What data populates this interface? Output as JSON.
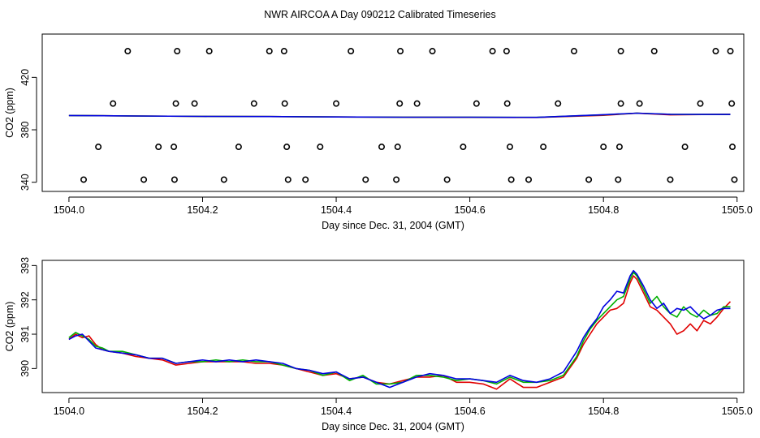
{
  "title": "NWR AIRCOA A  Day 090212  Calibrated Timeseries",
  "colors": {
    "red": "#e00000",
    "green": "#00b000",
    "blue": "#0000e0",
    "axis": "#000000"
  },
  "chart_data": [
    {
      "type": "scatter",
      "xlabel": "Day since Dec. 31, 2004 (GMT)",
      "ylabel": "CO2 (ppm)",
      "xlim": [
        1503.96,
        1505.01
      ],
      "ylim": [
        333,
        453
      ],
      "xticks": [
        "1504.0",
        "1504.2",
        "1504.4",
        "1504.6",
        "1504.8",
        "1505.0"
      ],
      "yticks": [
        "340",
        "380",
        "420"
      ],
      "grid": false,
      "markers": [
        {
          "x": 1504.088,
          "y": 440
        },
        {
          "x": 1504.162,
          "y": 440
        },
        {
          "x": 1504.21,
          "y": 440
        },
        {
          "x": 1504.3,
          "y": 440
        },
        {
          "x": 1504.322,
          "y": 440
        },
        {
          "x": 1504.422,
          "y": 440
        },
        {
          "x": 1504.496,
          "y": 440
        },
        {
          "x": 1504.544,
          "y": 440
        },
        {
          "x": 1504.634,
          "y": 440
        },
        {
          "x": 1504.655,
          "y": 440
        },
        {
          "x": 1504.756,
          "y": 440
        },
        {
          "x": 1504.826,
          "y": 440
        },
        {
          "x": 1504.876,
          "y": 440
        },
        {
          "x": 1504.968,
          "y": 440
        },
        {
          "x": 1504.99,
          "y": 440
        },
        {
          "x": 1504.066,
          "y": 400
        },
        {
          "x": 1504.16,
          "y": 400
        },
        {
          "x": 1504.188,
          "y": 400
        },
        {
          "x": 1504.277,
          "y": 400
        },
        {
          "x": 1504.323,
          "y": 400
        },
        {
          "x": 1504.4,
          "y": 400
        },
        {
          "x": 1504.495,
          "y": 400
        },
        {
          "x": 1504.521,
          "y": 400
        },
        {
          "x": 1504.61,
          "y": 400
        },
        {
          "x": 1504.656,
          "y": 400
        },
        {
          "x": 1504.732,
          "y": 400
        },
        {
          "x": 1504.826,
          "y": 400
        },
        {
          "x": 1504.854,
          "y": 400
        },
        {
          "x": 1504.945,
          "y": 400
        },
        {
          "x": 1504.992,
          "y": 400
        },
        {
          "x": 1504.044,
          "y": 367
        },
        {
          "x": 1504.134,
          "y": 367
        },
        {
          "x": 1504.157,
          "y": 367
        },
        {
          "x": 1504.254,
          "y": 367
        },
        {
          "x": 1504.326,
          "y": 367
        },
        {
          "x": 1504.376,
          "y": 367
        },
        {
          "x": 1504.468,
          "y": 367
        },
        {
          "x": 1504.492,
          "y": 367
        },
        {
          "x": 1504.59,
          "y": 367
        },
        {
          "x": 1504.66,
          "y": 367
        },
        {
          "x": 1504.71,
          "y": 367
        },
        {
          "x": 1504.8,
          "y": 367
        },
        {
          "x": 1504.824,
          "y": 367
        },
        {
          "x": 1504.922,
          "y": 367
        },
        {
          "x": 1504.993,
          "y": 367
        },
        {
          "x": 1504.022,
          "y": 342
        },
        {
          "x": 1504.112,
          "y": 342
        },
        {
          "x": 1504.158,
          "y": 342
        },
        {
          "x": 1504.232,
          "y": 342
        },
        {
          "x": 1504.328,
          "y": 342
        },
        {
          "x": 1504.354,
          "y": 342
        },
        {
          "x": 1504.444,
          "y": 342
        },
        {
          "x": 1504.49,
          "y": 342
        },
        {
          "x": 1504.566,
          "y": 342
        },
        {
          "x": 1504.662,
          "y": 342
        },
        {
          "x": 1504.688,
          "y": 342
        },
        {
          "x": 1504.778,
          "y": 342
        },
        {
          "x": 1504.822,
          "y": 342
        },
        {
          "x": 1504.9,
          "y": 342
        },
        {
          "x": 1504.996,
          "y": 342
        }
      ],
      "series": [
        {
          "color": "#e00000",
          "x": [
            1504.0,
            1504.1,
            1504.2,
            1504.3,
            1504.4,
            1504.5,
            1504.6,
            1504.7,
            1504.8,
            1504.85,
            1504.9,
            1504.99
          ],
          "y": [
            390.9,
            390.5,
            390.2,
            390.1,
            389.8,
            389.6,
            389.5,
            389.4,
            391.0,
            392.6,
            391.4,
            391.9
          ]
        },
        {
          "color": "#00b000",
          "x": [
            1504.0,
            1504.1,
            1504.2,
            1504.3,
            1504.4,
            1504.5,
            1504.6,
            1504.7,
            1504.8,
            1504.85,
            1504.9,
            1504.99
          ],
          "y": [
            390.9,
            390.5,
            390.2,
            390.1,
            389.8,
            389.6,
            389.6,
            389.5,
            391.4,
            392.7,
            391.8,
            391.7
          ]
        },
        {
          "color": "#0000e0",
          "x": [
            1504.0,
            1504.1,
            1504.2,
            1504.3,
            1504.4,
            1504.5,
            1504.6,
            1504.7,
            1504.8,
            1504.85,
            1504.9,
            1504.99
          ],
          "y": [
            390.9,
            390.5,
            390.2,
            390.1,
            389.8,
            389.6,
            389.6,
            389.5,
            391.5,
            392.7,
            391.8,
            391.7
          ]
        }
      ]
    },
    {
      "type": "line",
      "xlabel": "Day since Dec. 31, 2004 (GMT)",
      "ylabel": "CO2 (ppm)",
      "xlim": [
        1503.96,
        1505.01
      ],
      "ylim": [
        389.3,
        393.15
      ],
      "xticks": [
        "1504.0",
        "1504.2",
        "1504.4",
        "1504.6",
        "1504.8",
        "1505.0"
      ],
      "yticks": [
        "390",
        "391",
        "392",
        "393"
      ],
      "grid": false,
      "series": [
        {
          "color": "#e00000",
          "x": [
            1504.0,
            1504.01,
            1504.02,
            1504.03,
            1504.04,
            1504.05,
            1504.06,
            1504.08,
            1504.1,
            1504.12,
            1504.14,
            1504.16,
            1504.18,
            1504.2,
            1504.22,
            1504.24,
            1504.26,
            1504.28,
            1504.3,
            1504.32,
            1504.34,
            1504.36,
            1504.38,
            1504.4,
            1504.42,
            1504.44,
            1504.46,
            1504.48,
            1504.5,
            1504.52,
            1504.54,
            1504.56,
            1504.58,
            1504.6,
            1504.62,
            1504.64,
            1504.66,
            1504.68,
            1504.7,
            1504.72,
            1504.74,
            1504.76,
            1504.77,
            1504.78,
            1504.79,
            1504.8,
            1504.81,
            1504.82,
            1504.83,
            1504.84,
            1504.845,
            1504.85,
            1504.86,
            1504.87,
            1504.88,
            1504.89,
            1504.9,
            1504.91,
            1504.92,
            1504.93,
            1504.94,
            1504.95,
            1504.96,
            1504.97,
            1504.98,
            1504.99
          ],
          "y": [
            390.85,
            391.0,
            390.9,
            390.95,
            390.7,
            390.55,
            390.5,
            390.45,
            390.35,
            390.3,
            390.25,
            390.1,
            390.15,
            390.2,
            390.2,
            390.2,
            390.2,
            390.15,
            390.15,
            390.1,
            390.0,
            389.9,
            389.8,
            389.85,
            389.7,
            389.75,
            389.6,
            389.55,
            389.65,
            389.75,
            389.75,
            389.8,
            389.6,
            389.6,
            389.55,
            389.4,
            389.7,
            389.45,
            389.45,
            389.6,
            389.75,
            390.3,
            390.7,
            391.0,
            391.3,
            391.5,
            391.7,
            391.75,
            391.9,
            392.5,
            392.7,
            392.6,
            392.2,
            391.8,
            391.7,
            391.5,
            391.3,
            391.0,
            391.1,
            391.3,
            391.1,
            391.4,
            391.3,
            391.5,
            391.75,
            391.95
          ]
        },
        {
          "color": "#00b000",
          "x": [
            1504.0,
            1504.01,
            1504.02,
            1504.03,
            1504.04,
            1504.05,
            1504.06,
            1504.08,
            1504.1,
            1504.12,
            1504.14,
            1504.16,
            1504.18,
            1504.2,
            1504.22,
            1504.24,
            1504.26,
            1504.28,
            1504.3,
            1504.32,
            1504.34,
            1504.36,
            1504.38,
            1504.4,
            1504.42,
            1504.44,
            1504.46,
            1504.48,
            1504.5,
            1504.52,
            1504.54,
            1504.56,
            1504.58,
            1504.6,
            1504.62,
            1504.64,
            1504.66,
            1504.68,
            1504.7,
            1504.72,
            1504.74,
            1504.76,
            1504.77,
            1504.78,
            1504.79,
            1504.8,
            1504.81,
            1504.82,
            1504.83,
            1504.84,
            1504.845,
            1504.85,
            1504.86,
            1504.87,
            1504.88,
            1504.89,
            1504.9,
            1504.91,
            1504.92,
            1504.93,
            1504.94,
            1504.95,
            1504.96,
            1504.97,
            1504.98,
            1504.99
          ],
          "y": [
            390.9,
            391.05,
            390.95,
            390.85,
            390.65,
            390.6,
            390.5,
            390.5,
            390.4,
            390.3,
            390.3,
            390.15,
            390.2,
            390.2,
            390.25,
            390.2,
            390.25,
            390.2,
            390.2,
            390.1,
            390.0,
            389.95,
            389.8,
            389.9,
            389.65,
            389.8,
            389.55,
            389.55,
            389.6,
            389.8,
            389.8,
            389.75,
            389.65,
            389.7,
            389.65,
            389.55,
            389.75,
            389.6,
            389.6,
            389.65,
            389.8,
            390.35,
            390.8,
            391.15,
            391.4,
            391.6,
            391.8,
            392.0,
            392.1,
            392.6,
            392.8,
            392.7,
            392.3,
            391.9,
            392.1,
            391.8,
            391.6,
            391.5,
            391.8,
            391.6,
            391.5,
            391.7,
            391.55,
            391.6,
            391.8,
            391.8
          ]
        },
        {
          "color": "#0000e0",
          "x": [
            1504.0,
            1504.01,
            1504.02,
            1504.03,
            1504.04,
            1504.05,
            1504.06,
            1504.08,
            1504.1,
            1504.12,
            1504.14,
            1504.16,
            1504.18,
            1504.2,
            1504.22,
            1504.24,
            1504.26,
            1504.28,
            1504.3,
            1504.32,
            1504.34,
            1504.36,
            1504.38,
            1504.4,
            1504.42,
            1504.44,
            1504.46,
            1504.48,
            1504.5,
            1504.52,
            1504.54,
            1504.56,
            1504.58,
            1504.6,
            1504.62,
            1504.64,
            1504.66,
            1504.68,
            1504.7,
            1504.72,
            1504.74,
            1504.76,
            1504.77,
            1504.78,
            1504.79,
            1504.8,
            1504.81,
            1504.82,
            1504.83,
            1504.84,
            1504.845,
            1504.85,
            1504.86,
            1504.87,
            1504.88,
            1504.89,
            1504.9,
            1504.91,
            1504.92,
            1504.93,
            1504.94,
            1504.95,
            1504.96,
            1504.97,
            1504.98,
            1504.99
          ],
          "y": [
            390.85,
            390.95,
            391.0,
            390.8,
            390.6,
            390.55,
            390.5,
            390.45,
            390.4,
            390.3,
            390.3,
            390.15,
            390.2,
            390.25,
            390.2,
            390.25,
            390.2,
            390.25,
            390.2,
            390.15,
            390.0,
            389.95,
            389.85,
            389.9,
            389.7,
            389.75,
            389.6,
            389.45,
            389.6,
            389.75,
            389.85,
            389.8,
            389.7,
            389.7,
            389.65,
            389.6,
            389.8,
            389.65,
            389.6,
            389.7,
            389.9,
            390.5,
            390.9,
            391.2,
            391.45,
            391.8,
            392.0,
            392.25,
            392.2,
            392.7,
            392.85,
            392.75,
            392.4,
            392.0,
            391.75,
            391.9,
            391.6,
            391.75,
            391.7,
            391.8,
            391.6,
            391.45,
            391.55,
            391.7,
            391.75,
            391.75
          ]
        }
      ]
    }
  ]
}
